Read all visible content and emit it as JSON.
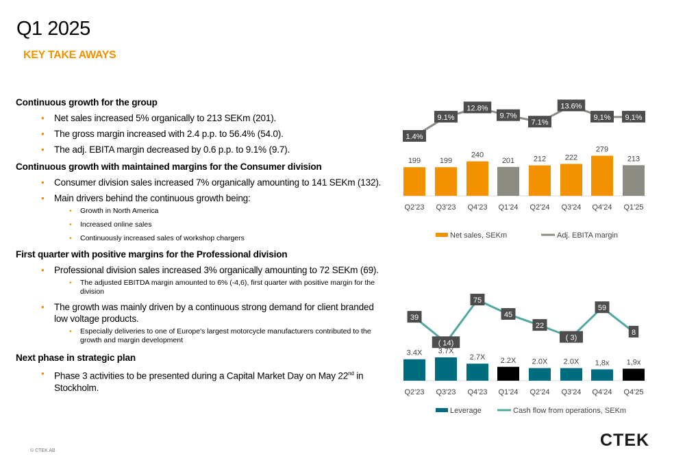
{
  "page": {
    "title": "Q1 2025",
    "subtitle": "KEY TAKE AWAYS",
    "footer": "© CTEK AB",
    "logo": "CTEK"
  },
  "text": {
    "s1": {
      "heading": "Continuous growth for the group",
      "bullets": [
        "Net sales increased 5% organically to 213 SEKm (201).",
        "The gross margin increased with 2.4 p.p. to 56.4% (54.0).",
        "The adj. EBITA margin decreased by 0.6 p.p. to  9.1% (9.7)."
      ]
    },
    "s2": {
      "heading": "Continuous growth with maintained margins for the Consumer division",
      "bullets": [
        "Consumer division sales increased 7% organically amounting to 141 SEKm (132).",
        "Main drivers behind the continuous growth being:"
      ],
      "sub": [
        "Growth in North America",
        "Increased online sales",
        "Continuously increased sales of workshop chargers"
      ]
    },
    "s3": {
      "heading": "First quarter with positive margins for the Professional division",
      "b1": "Professional division sales increased 3% organically amounting to 72 SEKm (69).",
      "b1_sub": "The adjusted EBITDA margin amounted to 6% (-4,6), first quarter with positive margin for the division",
      "b2": "The growth was mainly driven by a continuous strong demand for client branded low voltage products.",
      "b2_sub": "Especially deliveries to one of Europe's largest motorcycle manufacturers contributed to the growth and margin development"
    },
    "s4": {
      "heading": "Next phase in strategic plan",
      "bullet_pre": "Phase 3 activities to be presented during a Capital Market Day on May 22",
      "bullet_sup": "nd",
      "bullet_post": " in Stockholm."
    }
  },
  "colors": {
    "orange": "#f39200",
    "grey": "#8c8c82",
    "teal": "#006d7e",
    "black": "#000000",
    "line_grey": "#8c8c82",
    "line_teal": "#52a7a2",
    "label_bg": "#4d4d4d"
  },
  "chart_data": [
    {
      "type": "bar",
      "categories": [
        "Q2'23",
        "Q3'23",
        "Q4'23",
        "Q1'24",
        "Q2'24",
        "Q3'24",
        "Q4'24",
        "Q1'25"
      ],
      "series": [
        {
          "name": "Net sales, SEKm",
          "type": "bar",
          "values": [
            199,
            199,
            240,
            201,
            212,
            222,
            279,
            213
          ],
          "labels": [
            "199",
            "199",
            "240",
            "201",
            "212",
            "222",
            "279",
            "213"
          ],
          "colors": [
            "orange",
            "orange",
            "orange",
            "grey",
            "orange",
            "orange",
            "orange",
            "grey"
          ]
        },
        {
          "name": "Adj. EBITA margin",
          "type": "line",
          "values": [
            1.4,
            9.1,
            12.8,
            9.7,
            7.1,
            13.6,
            9.1,
            9.1
          ],
          "labels": [
            "1.4%",
            "9.1%",
            "12.8%",
            "9.7%",
            "7.1%",
            "13.6%",
            "9,1%",
            "9,1%"
          ]
        }
      ],
      "legend": "bottom"
    },
    {
      "type": "bar",
      "categories": [
        "Q2'23",
        "Q3'23",
        "Q4'23",
        "Q1'24",
        "Q2'24",
        "Q3'24",
        "Q4'24",
        "Q4'25"
      ],
      "series": [
        {
          "name": "Leverage",
          "type": "bar",
          "values": [
            3.4,
            3.7,
            2.7,
            2.2,
            2.0,
            2.0,
            1.8,
            1.9
          ],
          "labels": [
            "3.4X",
            "3.7X",
            "2.7X",
            "2.2X",
            "2.0X",
            "2.0X",
            "1,8x",
            "1,9x"
          ],
          "colors": [
            "teal",
            "teal",
            "teal",
            "black",
            "teal",
            "teal",
            "teal",
            "black"
          ]
        },
        {
          "name": "Cash flow from operations, SEKm",
          "type": "line",
          "values": [
            39,
            -14,
            75,
            45,
            22,
            -3,
            59,
            8
          ],
          "labels": [
            "39",
            "( 14)",
            "75",
            "45",
            "22",
            "( 3)",
            "59",
            "8"
          ]
        }
      ],
      "legend": "bottom"
    }
  ]
}
